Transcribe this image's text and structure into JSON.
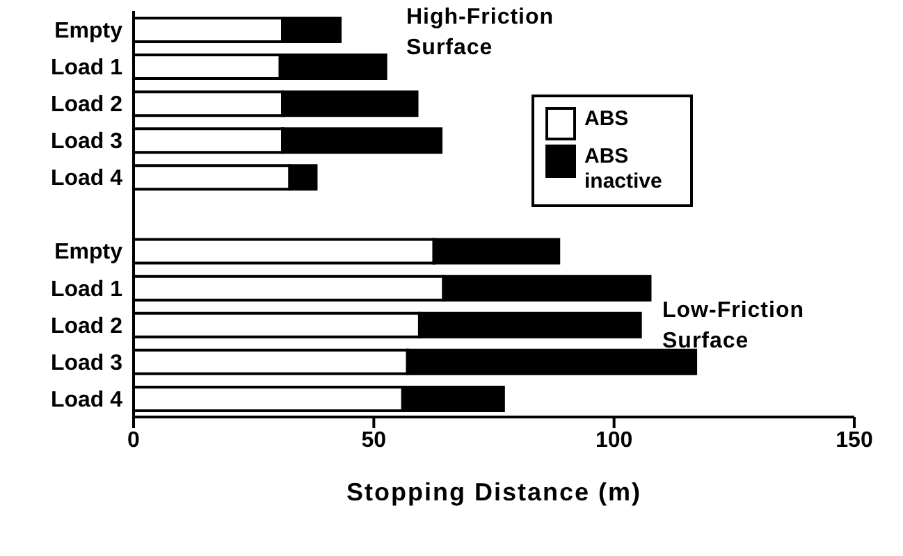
{
  "chart_data": {
    "type": "bar",
    "orientation": "horizontal",
    "stacked": true,
    "xlabel": "Stopping Distance (m)",
    "categories": [
      "Empty",
      "Load 1",
      "Load 2",
      "Load 3",
      "Load 4",
      null,
      "Empty",
      "Load 1",
      "Load 2",
      "Load 3",
      "Load 4"
    ],
    "series": [
      {
        "name": "ABS",
        "color": "#ffffff",
        "values": [
          31,
          30.5,
          31,
          31,
          32.5,
          null,
          62.5,
          64.5,
          59.5,
          57,
          56
        ]
      },
      {
        "name": "ABS inactive",
        "color": "#000000",
        "values": [
          12,
          22,
          28,
          33,
          5.5,
          null,
          26,
          43,
          46,
          60,
          21
        ]
      }
    ],
    "xlim": [
      0,
      150
    ],
    "xticks": [
      0,
      50,
      100,
      150
    ],
    "legend": "right",
    "annotations": [
      "High-Friction Surface",
      "Low-Friction Surface"
    ]
  }
}
